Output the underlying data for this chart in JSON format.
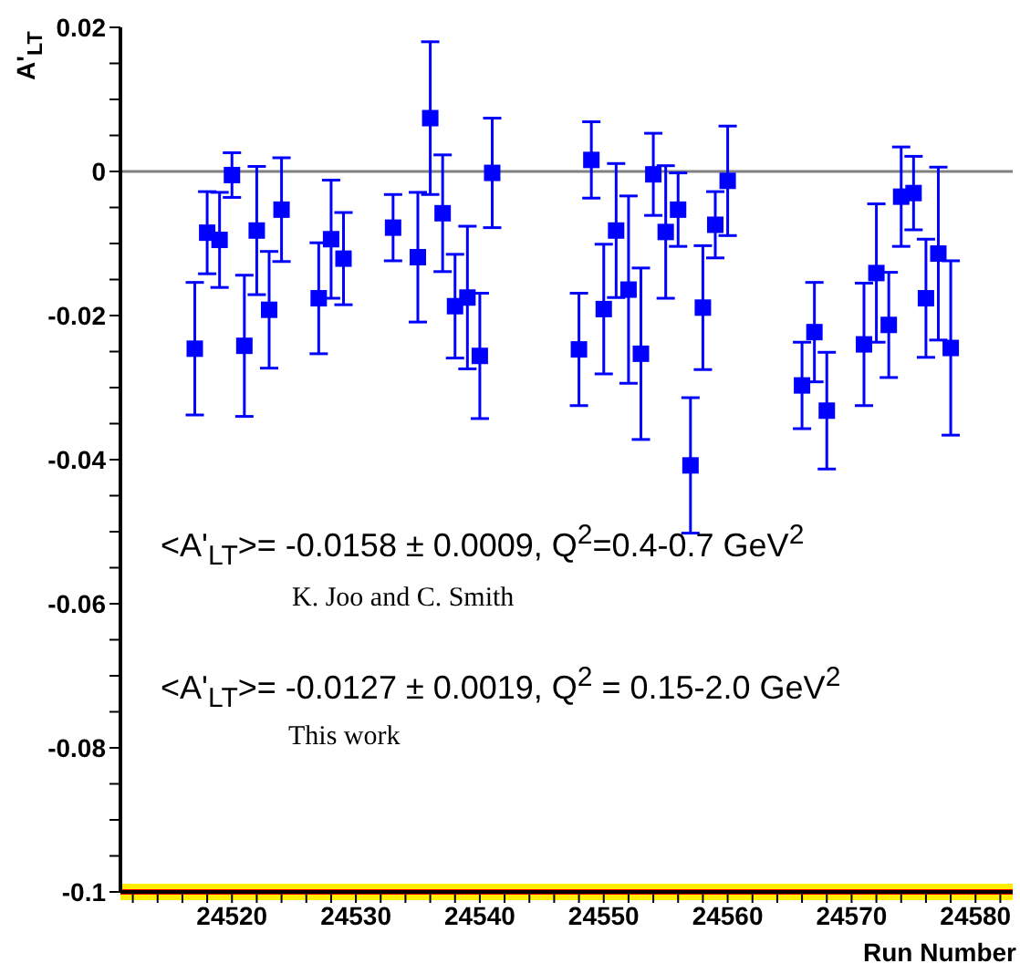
{
  "chart_data": {
    "type": "scatter",
    "xlabel": "Run Number",
    "ylabel": "A'$_{LT}$",
    "x": [
      24517,
      24518,
      24519,
      24520,
      24521,
      24522,
      24523,
      24524,
      24527,
      24528,
      24529,
      24533,
      24535,
      24536,
      24537,
      24538,
      24539,
      24540,
      24541,
      24548,
      24549,
      24550,
      24551,
      24552,
      24553,
      24554,
      24555,
      24556,
      24557,
      24558,
      24559,
      24560,
      24566,
      24567,
      24568,
      24571,
      24572,
      24573,
      24574,
      24575,
      24576,
      24577,
      24578
    ],
    "series": [
      {
        "color": "#0000ff",
        "values": [
          -0.0246,
          -0.0085,
          -0.0095,
          -0.0005,
          -0.0242,
          -0.0082,
          -0.0192,
          -0.0053,
          -0.0176,
          -0.0094,
          -0.0121,
          -0.0078,
          -0.0119,
          0.0074,
          -0.0058,
          -0.0187,
          -0.0175,
          -0.0256,
          -0.0002,
          -0.0247,
          0.0016,
          -0.0191,
          -0.0082,
          -0.0164,
          -0.0253,
          -0.0004,
          -0.0084,
          -0.0053,
          -0.0408,
          -0.0189,
          -0.0074,
          -0.0013,
          -0.0297,
          -0.0223,
          -0.0332,
          -0.024,
          -0.0141,
          -0.0213,
          -0.0035,
          -0.003,
          -0.0176,
          -0.0114,
          -0.0245
        ],
        "errors": [
          0.0092,
          0.0057,
          0.0066,
          0.0031,
          0.0098,
          0.0089,
          0.0081,
          0.0072,
          0.0077,
          0.0082,
          0.0064,
          0.0046,
          0.009,
          0.0106,
          0.0081,
          0.0072,
          0.0099,
          0.0087,
          0.0076,
          0.0078,
          0.0053,
          0.009,
          0.0093,
          0.013,
          0.0119,
          0.0057,
          0.0092,
          0.0051,
          0.0094,
          0.0086,
          0.0046,
          0.0076,
          0.006,
          0.0069,
          0.0081,
          0.0085,
          0.0096,
          0.0073,
          0.0069,
          0.0051,
          0.0082,
          0.012,
          0.0121
        ]
      }
    ],
    "marker": "square",
    "xlim": [
      24511,
      24583
    ],
    "xticks": [
      {
        "value": 24512,
        "label": null
      },
      {
        "value": 24514,
        "label": null
      },
      {
        "value": 24516,
        "label": null
      },
      {
        "value": 24518,
        "label": null
      },
      24520,
      {
        "value": 24522,
        "label": null
      },
      {
        "value": 24524,
        "label": null
      },
      {
        "value": 24526,
        "label": null
      },
      {
        "value": 24528,
        "label": null
      },
      24530,
      {
        "value": 24532,
        "label": null
      },
      {
        "value": 24534,
        "label": null
      },
      {
        "value": 24536,
        "label": null
      },
      {
        "value": 24538,
        "label": null
      },
      24540,
      {
        "value": 24542,
        "label": null
      },
      {
        "value": 24544,
        "label": null
      },
      {
        "value": 24546,
        "label": null
      },
      {
        "value": 24548,
        "label": null
      },
      24550,
      {
        "value": 24552,
        "label": null
      },
      {
        "value": 24554,
        "label": null
      },
      {
        "value": 24556,
        "label": null
      },
      {
        "value": 24558,
        "label": null
      },
      24560,
      {
        "value": 24562,
        "label": null
      },
      {
        "value": 24564,
        "label": null
      },
      {
        "value": 24566,
        "label": null
      },
      {
        "value": 24568,
        "label": null
      },
      24570,
      {
        "value": 24572,
        "label": null
      },
      {
        "value": 24574,
        "label": null
      },
      {
        "value": 24576,
        "label": null
      },
      {
        "value": 24578,
        "label": null
      },
      24580,
      {
        "value": 24582,
        "label": null
      }
    ],
    "ylim": [
      -0.1,
      0.02
    ],
    "yticks": [
      -0.1,
      {
        "value": -0.095,
        "label": null
      },
      {
        "value": -0.09,
        "label": null
      },
      {
        "value": -0.085,
        "label": null
      },
      -0.08,
      {
        "value": -0.075,
        "label": null
      },
      {
        "value": -0.07,
        "label": null
      },
      {
        "value": -0.065,
        "label": null
      },
      -0.06,
      {
        "value": -0.055,
        "label": null
      },
      {
        "value": -0.05,
        "label": null
      },
      {
        "value": -0.045,
        "label": null
      },
      -0.04,
      {
        "value": -0.035,
        "label": null
      },
      {
        "value": -0.03,
        "label": null
      },
      {
        "value": -0.025,
        "label": null
      },
      -0.02,
      {
        "value": -0.015,
        "label": null
      },
      {
        "value": -0.01,
        "label": null
      },
      {
        "value": -0.005,
        "label": null
      },
      0,
      {
        "value": 0.005,
        "label": null
      },
      {
        "value": 0.01,
        "label": null
      },
      {
        "value": 0.015,
        "label": null
      },
      0.02
    ],
    "ref_lines": [
      {
        "axis": "y",
        "value": 0,
        "color": "#808080"
      },
      {
        "axis": "y",
        "value": -0.1,
        "color": "#ff0000"
      }
    ],
    "annotations": [
      "<A'$_{LT}$>= -0.0158 ± 0.0009, Q$^{2}$=0.4-0.7 GeV$^{2}$",
      "K. Joo and C. Smith",
      "<A'$_{LT}$>= -0.0127 ± 0.0019, Q$^{2}$ = 0.15-2.0 GeV$^{2}$",
      "This work"
    ],
    "grid": false,
    "legend": false
  }
}
